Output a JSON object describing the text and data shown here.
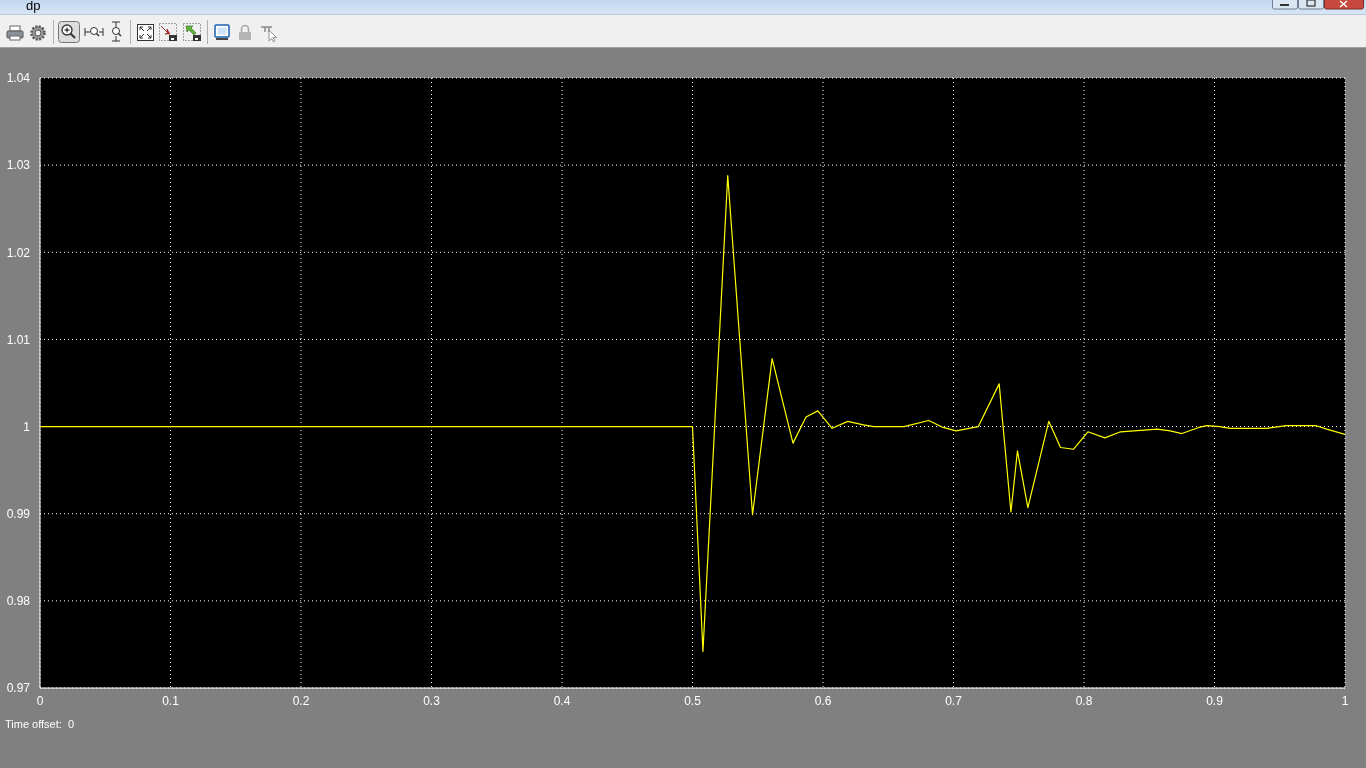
{
  "chart_data": {
    "type": "line",
    "title": "dp",
    "annotations": [
      "Time offset:  0"
    ],
    "xlim": [
      0,
      1
    ],
    "ylim": [
      0.97,
      1.04
    ],
    "xticks": [
      0,
      0.1,
      0.2,
      0.3,
      0.4,
      0.5,
      0.6,
      0.7,
      0.8,
      0.9,
      1
    ],
    "yticks": [
      0.97,
      0.98,
      0.99,
      1,
      1.01,
      1.02,
      1.03,
      1.04
    ],
    "grid": true,
    "line_style": "solid",
    "series": [
      {
        "color": "#ffff00",
        "x": [
          0,
          0.5,
          0.508,
          0.527,
          0.546,
          0.561,
          0.577,
          0.587,
          0.596,
          0.607,
          0.619,
          0.631,
          0.639,
          0.662,
          0.681,
          0.692,
          0.702,
          0.719,
          0.735,
          0.744,
          0.749,
          0.757,
          0.773,
          0.782,
          0.792,
          0.803,
          0.816,
          0.828,
          0.846,
          0.856,
          0.866,
          0.875,
          0.888,
          0.894,
          0.904,
          0.912,
          0.94,
          0.955,
          0.978,
          0.986,
          1
        ],
        "values": [
          1,
          1,
          0.9742,
          1.0288,
          0.9899,
          1.0078,
          0.9981,
          1.0011,
          1.0018,
          0.9998,
          1.0006,
          1.0002,
          1,
          1,
          1.0007,
          0.9999,
          0.9995,
          1,
          1.0049,
          0.9902,
          0.9972,
          0.9907,
          1.0006,
          0.9976,
          0.9974,
          0.9994,
          0.9987,
          0.9994,
          0.9996,
          0.9997,
          0.9995,
          0.9992,
          0.9999,
          1.0001,
          1,
          0.9998,
          0.9998,
          1.0001,
          1.0001,
          0.9997,
          0.9991
        ]
      }
    ]
  }
}
